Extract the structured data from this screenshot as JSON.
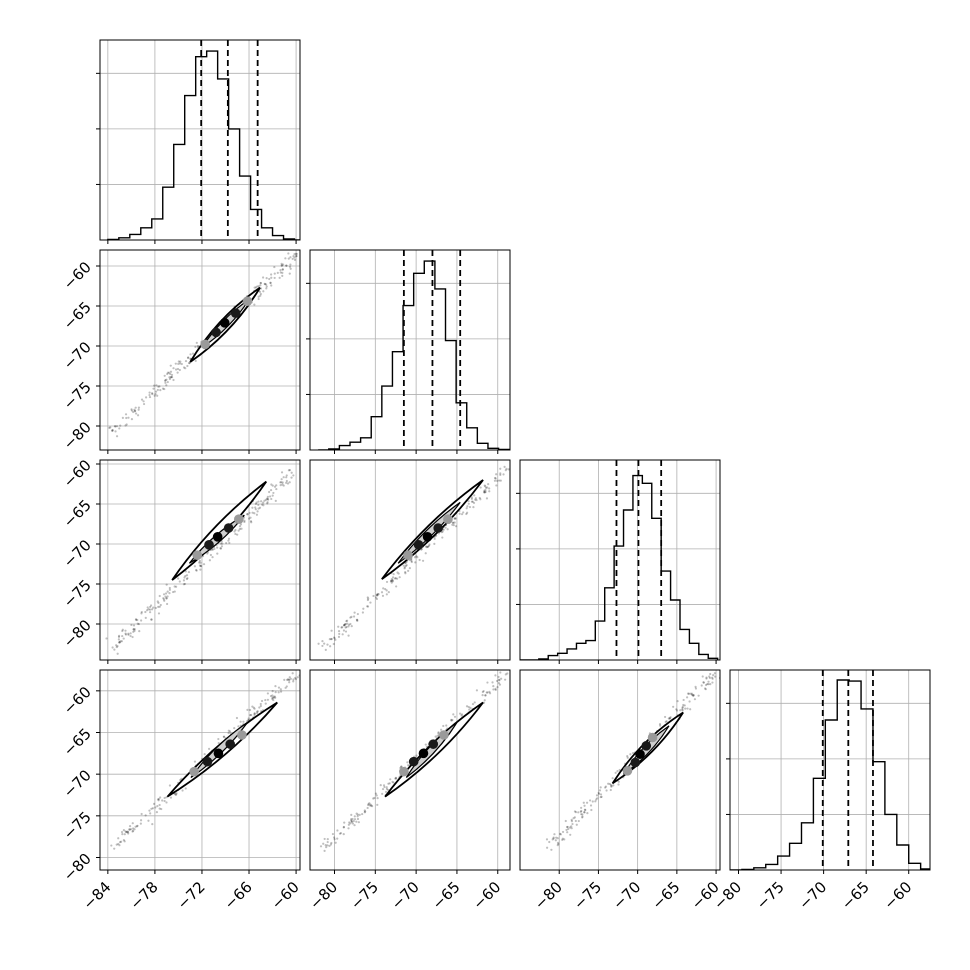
{
  "chart_data": {
    "type": "corner",
    "title": "",
    "n_params": 4,
    "style": {
      "frame_color": "#000000",
      "grid_color": "#b0b0b0",
      "hist_color": "#000000",
      "quantile_color": "#000000",
      "point_color": "#000000"
    },
    "quantiles": [
      [
        -72.1,
        -68.7,
        -64.9
      ],
      [
        -71.5,
        -68.0,
        -64.6
      ],
      [
        -72.7,
        -69.9,
        -67.0
      ],
      [
        -70.1,
        -67.1,
        -64.2
      ]
    ],
    "histograms": [
      {
        "param_index": 0,
        "bin_edges": [
          -84.0,
          -82.6,
          -81.2,
          -79.8,
          -78.4,
          -77.0,
          -75.6,
          -74.2,
          -72.8,
          -71.4,
          -70.0,
          -68.6,
          -67.2,
          -65.8,
          -64.4,
          -63.0,
          -61.6,
          -60.2,
          -58.8
        ],
        "counts": [
          1,
          4,
          10,
          22,
          38,
          95,
          172,
          260,
          330,
          340,
          290,
          200,
          115,
          55,
          22,
          8,
          2,
          0
        ]
      },
      {
        "param_index": 1,
        "bin_edges": [
          -82.0,
          -80.7,
          -79.4,
          -78.1,
          -76.8,
          -75.5,
          -74.2,
          -72.9,
          -71.6,
          -70.3,
          -69.0,
          -67.7,
          -66.4,
          -65.1,
          -63.8,
          -62.5,
          -61.2,
          -59.9,
          -58.6
        ],
        "counts": [
          0,
          2,
          8,
          14,
          22,
          60,
          115,
          177,
          260,
          318,
          340,
          290,
          197,
          85,
          40,
          12,
          3,
          1
        ]
      },
      {
        "param_index": 2,
        "bin_edges": [
          -85.0,
          -83.8,
          -82.6,
          -81.4,
          -80.2,
          -79.0,
          -77.8,
          -76.6,
          -75.4,
          -74.2,
          -73.0,
          -71.8,
          -70.6,
          -69.4,
          -68.2,
          -67.0,
          -65.8,
          -64.6,
          -63.4,
          -62.2,
          -61.0,
          -59.8
        ],
        "counts": [
          0,
          0,
          2,
          8,
          12,
          20,
          30,
          35,
          70,
          130,
          205,
          270,
          332,
          318,
          255,
          160,
          108,
          55,
          30,
          10,
          3
        ]
      },
      {
        "param_index": 3,
        "bin_edges": [
          -81.0,
          -79.6,
          -78.2,
          -76.8,
          -75.4,
          -74.0,
          -72.6,
          -71.2,
          -69.8,
          -68.4,
          -67.0,
          -65.6,
          -64.2,
          -62.8,
          -61.4,
          -60.0,
          -58.6,
          -57.2
        ],
        "counts": [
          0,
          1,
          4,
          10,
          25,
          48,
          85,
          165,
          270,
          342,
          340,
          290,
          195,
          100,
          45,
          12,
          2
        ]
      }
    ],
    "panels": [
      {
        "row": 0,
        "col": 0,
        "kind": "hist",
        "xlim": [
          -85,
          -59.5
        ],
        "ylim": [
          0,
          360
        ],
        "xticks": [
          -84,
          -78,
          -72,
          -66,
          -60
        ],
        "xtick_labels": [],
        "yticks": [
          100,
          200,
          300
        ],
        "ytick_labels": []
      },
      {
        "row": 1,
        "col": 0,
        "kind": "scatter2d",
        "param_x": 0,
        "param_y": 1,
        "xlim": [
          -85,
          -59.5
        ],
        "ylim": [
          -83,
          -58
        ],
        "xticks": [
          -84,
          -78,
          -72,
          -66,
          -60
        ],
        "xtick_labels": [],
        "yticks": [
          -60,
          -65,
          -70,
          -75,
          -80
        ],
        "ytick_labels": [
          "−60",
          "−65",
          "−70",
          "−75",
          "−80"
        ]
      },
      {
        "row": 1,
        "col": 1,
        "kind": "hist",
        "xlim": [
          -83,
          -58.5
        ],
        "ylim": [
          0,
          360
        ],
        "xticks": [
          -80,
          -75,
          -70,
          -65,
          -60
        ],
        "xtick_labels": [],
        "yticks": [
          100,
          200,
          300
        ],
        "ytick_labels": []
      },
      {
        "row": 2,
        "col": 0,
        "kind": "scatter2d",
        "param_x": 0,
        "param_y": 2,
        "xlim": [
          -85,
          -59.5
        ],
        "ylim": [
          -84.5,
          -59.5
        ],
        "xticks": [
          -84,
          -78,
          -72,
          -66,
          -60
        ],
        "xtick_labels": [],
        "yticks": [
          -60,
          -65,
          -70,
          -75,
          -80
        ],
        "ytick_labels": [
          "−60",
          "−65",
          "−70",
          "−75",
          "−80"
        ]
      },
      {
        "row": 2,
        "col": 1,
        "kind": "scatter2d",
        "param_x": 1,
        "param_y": 2,
        "xlim": [
          -83,
          -58.5
        ],
        "ylim": [
          -84.5,
          -59.5
        ],
        "xticks": [
          -80,
          -75,
          -70,
          -65,
          -60
        ],
        "xtick_labels": [],
        "yticks": [],
        "ytick_labels": []
      },
      {
        "row": 2,
        "col": 2,
        "kind": "hist",
        "xlim": [
          -85,
          -59.5
        ],
        "ylim": [
          0,
          360
        ],
        "xticks": [
          -80,
          -75,
          -70,
          -65,
          -60
        ],
        "xtick_labels": [],
        "yticks": [
          100,
          200,
          300
        ],
        "ytick_labels": []
      },
      {
        "row": 3,
        "col": 0,
        "kind": "scatter2d",
        "param_x": 0,
        "param_y": 3,
        "xlim": [
          -85,
          -59.5
        ],
        "ylim": [
          -81.5,
          -57.5
        ],
        "xticks": [
          -84,
          -78,
          -72,
          -66,
          -60
        ],
        "xtick_labels": [
          "−84",
          "−78",
          "−72",
          "−66",
          "−60"
        ],
        "yticks": [
          -60,
          -65,
          -70,
          -75,
          -80
        ],
        "ytick_labels": [
          "−60",
          "−65",
          "−70",
          "−75",
          "−80"
        ]
      },
      {
        "row": 3,
        "col": 1,
        "kind": "scatter2d",
        "param_x": 1,
        "param_y": 3,
        "xlim": [
          -83,
          -58.5
        ],
        "ylim": [
          -81.5,
          -57.5
        ],
        "xticks": [
          -80,
          -75,
          -70,
          -65,
          -60
        ],
        "xtick_labels": [
          "−80",
          "−75",
          "−70",
          "−65",
          "−60"
        ],
        "yticks": [],
        "ytick_labels": []
      },
      {
        "row": 3,
        "col": 2,
        "kind": "scatter2d",
        "param_x": 2,
        "param_y": 3,
        "xlim": [
          -85,
          -59.5
        ],
        "ylim": [
          -81.5,
          -57.5
        ],
        "xticks": [
          -80,
          -75,
          -70,
          -65,
          -60
        ],
        "xtick_labels": [
          "−80",
          "−75",
          "−70",
          "−65",
          "−60"
        ],
        "yticks": [],
        "ytick_labels": []
      },
      {
        "row": 3,
        "col": 3,
        "kind": "hist",
        "xlim": [
          -81,
          -57.5
        ],
        "ylim": [
          0,
          360
        ],
        "xticks": [
          -80,
          -75,
          -70,
          -65,
          -60
        ],
        "xtick_labels": [
          "−80",
          "−75",
          "−70",
          "−65",
          "−60"
        ],
        "yticks": [
          100,
          200,
          300
        ],
        "ytick_labels": []
      }
    ],
    "scatter2d_details": [
      {
        "param_x": 0,
        "param_y": 1,
        "tail_start": [
          -83.5,
          -80.8
        ],
        "tail_end": [
          -59.8,
          -58.5
        ],
        "contour_outer": [
          [
            -73.5,
            -72.0
          ],
          [
            -64.6,
            -62.7
          ]
        ],
        "contour_inner": [
          [
            -72.0,
            -70.2
          ],
          [
            -66.0,
            -64.2
          ]
        ],
        "peak_points": [
          [
            -71.6,
            -69.8
          ],
          [
            -70.2,
            -68.3
          ],
          [
            -69.1,
            -67.1
          ],
          [
            -67.7,
            -65.9
          ],
          [
            -66.2,
            -64.4
          ]
        ]
      },
      {
        "param_x": 0,
        "param_y": 2,
        "tail_start": [
          -83.5,
          -83.0
        ],
        "tail_end": [
          -59.8,
          -60.5
        ],
        "contour_outer": [
          [
            -75.8,
            -74.5
          ],
          [
            -63.8,
            -62.2
          ]
        ],
        "contour_inner": [
          [
            -73.6,
            -72.4
          ],
          [
            -66.6,
            -66.4
          ]
        ],
        "peak_points": [
          [
            -72.6,
            -71.4
          ],
          [
            -71.1,
            -70.1
          ],
          [
            -70.0,
            -69.1
          ],
          [
            -68.6,
            -68.0
          ],
          [
            -67.3,
            -66.9
          ]
        ]
      },
      {
        "param_x": 1,
        "param_y": 2,
        "tail_start": [
          -81.5,
          -83.0
        ],
        "tail_end": [
          -58.8,
          -60.5
        ],
        "contour_outer": [
          [
            -74.2,
            -74.4
          ],
          [
            -61.8,
            -62.0
          ]
        ],
        "contour_inner": [
          [
            -72.2,
            -72.4
          ],
          [
            -64.6,
            -64.8
          ]
        ],
        "peak_points": [
          [
            -71.0,
            -71.4
          ],
          [
            -69.7,
            -70.1
          ],
          [
            -68.6,
            -69.1
          ],
          [
            -67.3,
            -68.0
          ],
          [
            -66.1,
            -66.9
          ]
        ]
      },
      {
        "param_x": 0,
        "param_y": 3,
        "tail_start": [
          -83.5,
          -79.0
        ],
        "tail_end": [
          -59.8,
          -57.8
        ],
        "contour_outer": [
          [
            -76.4,
            -72.7
          ],
          [
            -62.4,
            -61.4
          ]
        ],
        "contour_inner": [
          [
            -73.4,
            -70.4
          ],
          [
            -66.2,
            -63.8
          ]
        ],
        "peak_points": [
          [
            -73.0,
            -69.7
          ],
          [
            -71.3,
            -68.5
          ],
          [
            -69.9,
            -67.5
          ],
          [
            -68.4,
            -66.4
          ],
          [
            -66.9,
            -65.3
          ]
        ]
      },
      {
        "param_x": 1,
        "param_y": 3,
        "tail_start": [
          -81.5,
          -79.0
        ],
        "tail_end": [
          -58.8,
          -57.8
        ],
        "contour_outer": [
          [
            -73.8,
            -72.7
          ],
          [
            -61.8,
            -61.4
          ]
        ],
        "contour_inner": [
          [
            -71.2,
            -70.4
          ],
          [
            -65.0,
            -63.8
          ]
        ],
        "peak_points": [
          [
            -71.5,
            -69.7
          ],
          [
            -70.3,
            -68.5
          ],
          [
            -69.1,
            -67.5
          ],
          [
            -67.9,
            -66.4
          ],
          [
            -66.6,
            -65.3
          ]
        ]
      },
      {
        "param_x": 2,
        "param_y": 3,
        "tail_start": [
          -81.5,
          -79.0
        ],
        "tail_end": [
          -60.0,
          -57.8
        ],
        "contour_outer": [
          [
            -73.2,
            -71.1
          ],
          [
            -64.2,
            -62.6
          ]
        ],
        "contour_inner": [
          [
            -71.8,
            -70.0
          ],
          [
            -66.0,
            -64.2
          ]
        ],
        "peak_points": [
          [
            -71.3,
            -69.6
          ],
          [
            -70.3,
            -68.6
          ],
          [
            -69.7,
            -67.6
          ],
          [
            -68.9,
            -66.6
          ],
          [
            -68.1,
            -65.6
          ]
        ]
      }
    ]
  }
}
